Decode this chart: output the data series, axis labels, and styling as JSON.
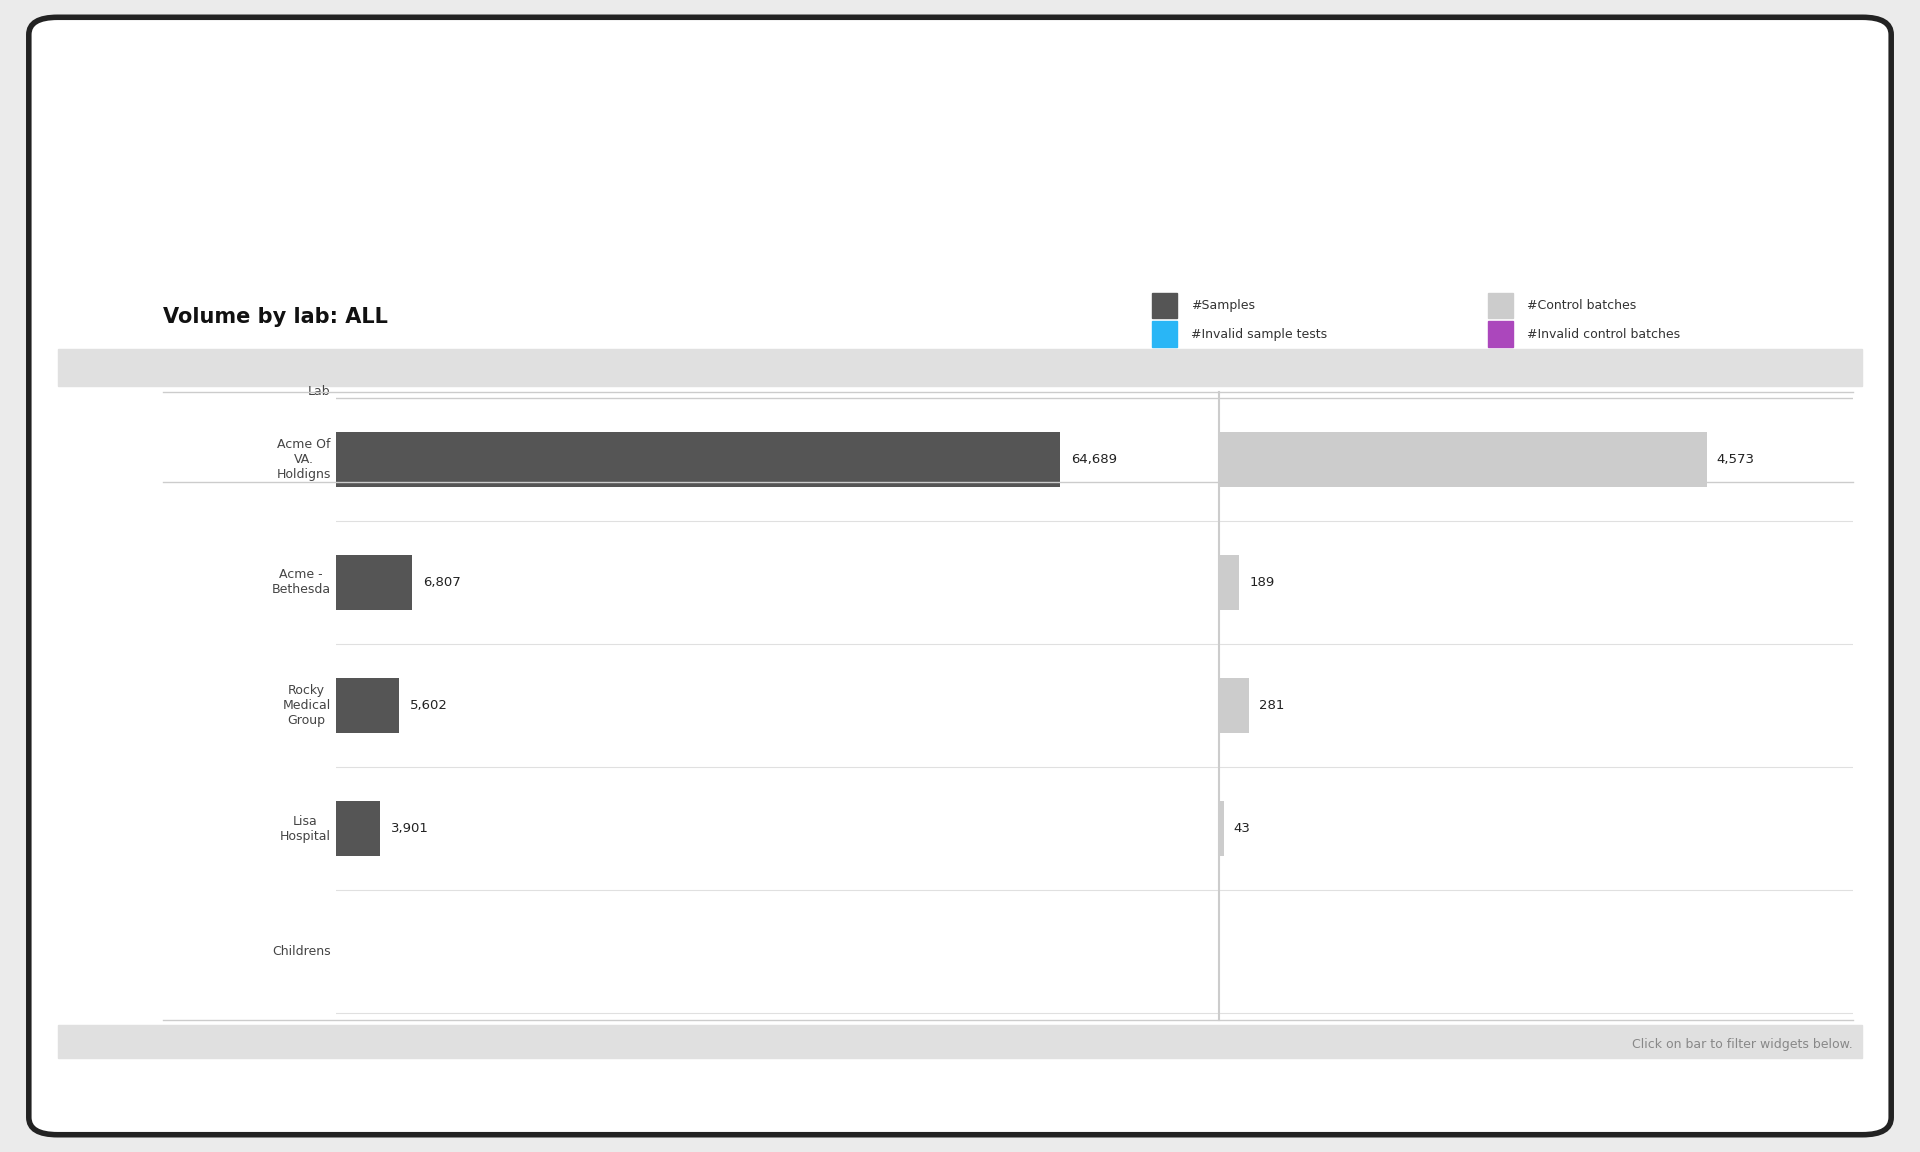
{
  "title": "Volume by lab: ALL",
  "labs": [
    "Acme Of\nVA.\nHoldigns",
    "Acme -\nBethesda",
    "Rocky\nMedical\nGroup",
    "Lisa\nHospital",
    "Childrens"
  ],
  "samples": [
    64689,
    6807,
    5602,
    3901,
    0
  ],
  "control_batches": [
    4573,
    189,
    281,
    43,
    0
  ],
  "legend_labels": [
    "#Samples",
    "#Invalid sample tests",
    "#Control batches",
    "#Invalid control batches"
  ],
  "legend_colors": [
    "#555555",
    "#29b6f6",
    "#cccccc",
    "#ab47bc"
  ],
  "sample_bar_color": "#555555",
  "control_bar_color": "#cccccc",
  "footer_text": "Click on bar to filter widgets below.",
  "background_color": "#ebebeb",
  "card_color": "#ffffff",
  "col_header": "Lab"
}
